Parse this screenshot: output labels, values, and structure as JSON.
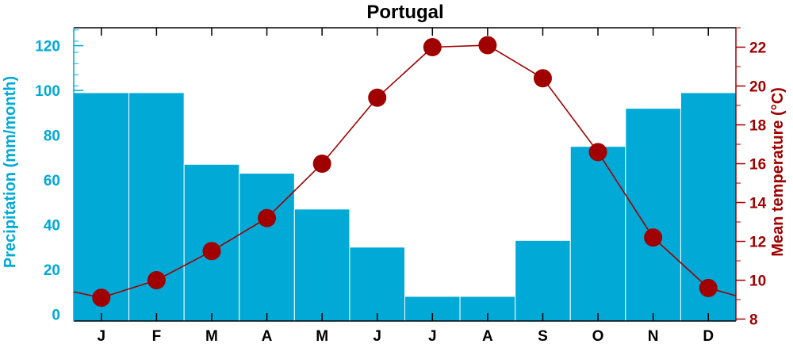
{
  "chart_data": {
    "type": "bar",
    "title": "Portugal",
    "categories": [
      "J",
      "F",
      "M",
      "A",
      "M",
      "J",
      "J",
      "A",
      "S",
      "O",
      "N",
      "D"
    ],
    "series": [
      {
        "name": "Precipitation (mm/month)",
        "type": "bar",
        "axis": "left",
        "color": "#00a9d6",
        "values": [
          99,
          99,
          67,
          63,
          47,
          30,
          8,
          8,
          33,
          75,
          92,
          99
        ]
      },
      {
        "name": "Mean temperature (°C)",
        "type": "line",
        "axis": "right",
        "color": "#a00000",
        "values": [
          9.1,
          10.0,
          11.5,
          13.2,
          16.0,
          19.4,
          22.0,
          22.1,
          20.4,
          16.6,
          12.2,
          9.6
        ],
        "extends_to_edges": true,
        "edge_values": [
          9.4,
          9.2
        ]
      }
    ],
    "ylabel": "Precipitation (mm/month)",
    "y2label": "Mean temperature (°C)",
    "ylim": [
      -3,
      128
    ],
    "y2lim": [
      7.9,
      23.0
    ],
    "yticks": [
      0,
      20,
      40,
      60,
      80,
      100,
      120
    ],
    "y2ticks": [
      8,
      10,
      12,
      14,
      16,
      18,
      20,
      22
    ],
    "y2minor_step": 1,
    "grid": false,
    "legend": "none",
    "colors": {
      "precipitation": "#00a9d6",
      "temperature": "#a00000",
      "axes": "#000000"
    }
  }
}
